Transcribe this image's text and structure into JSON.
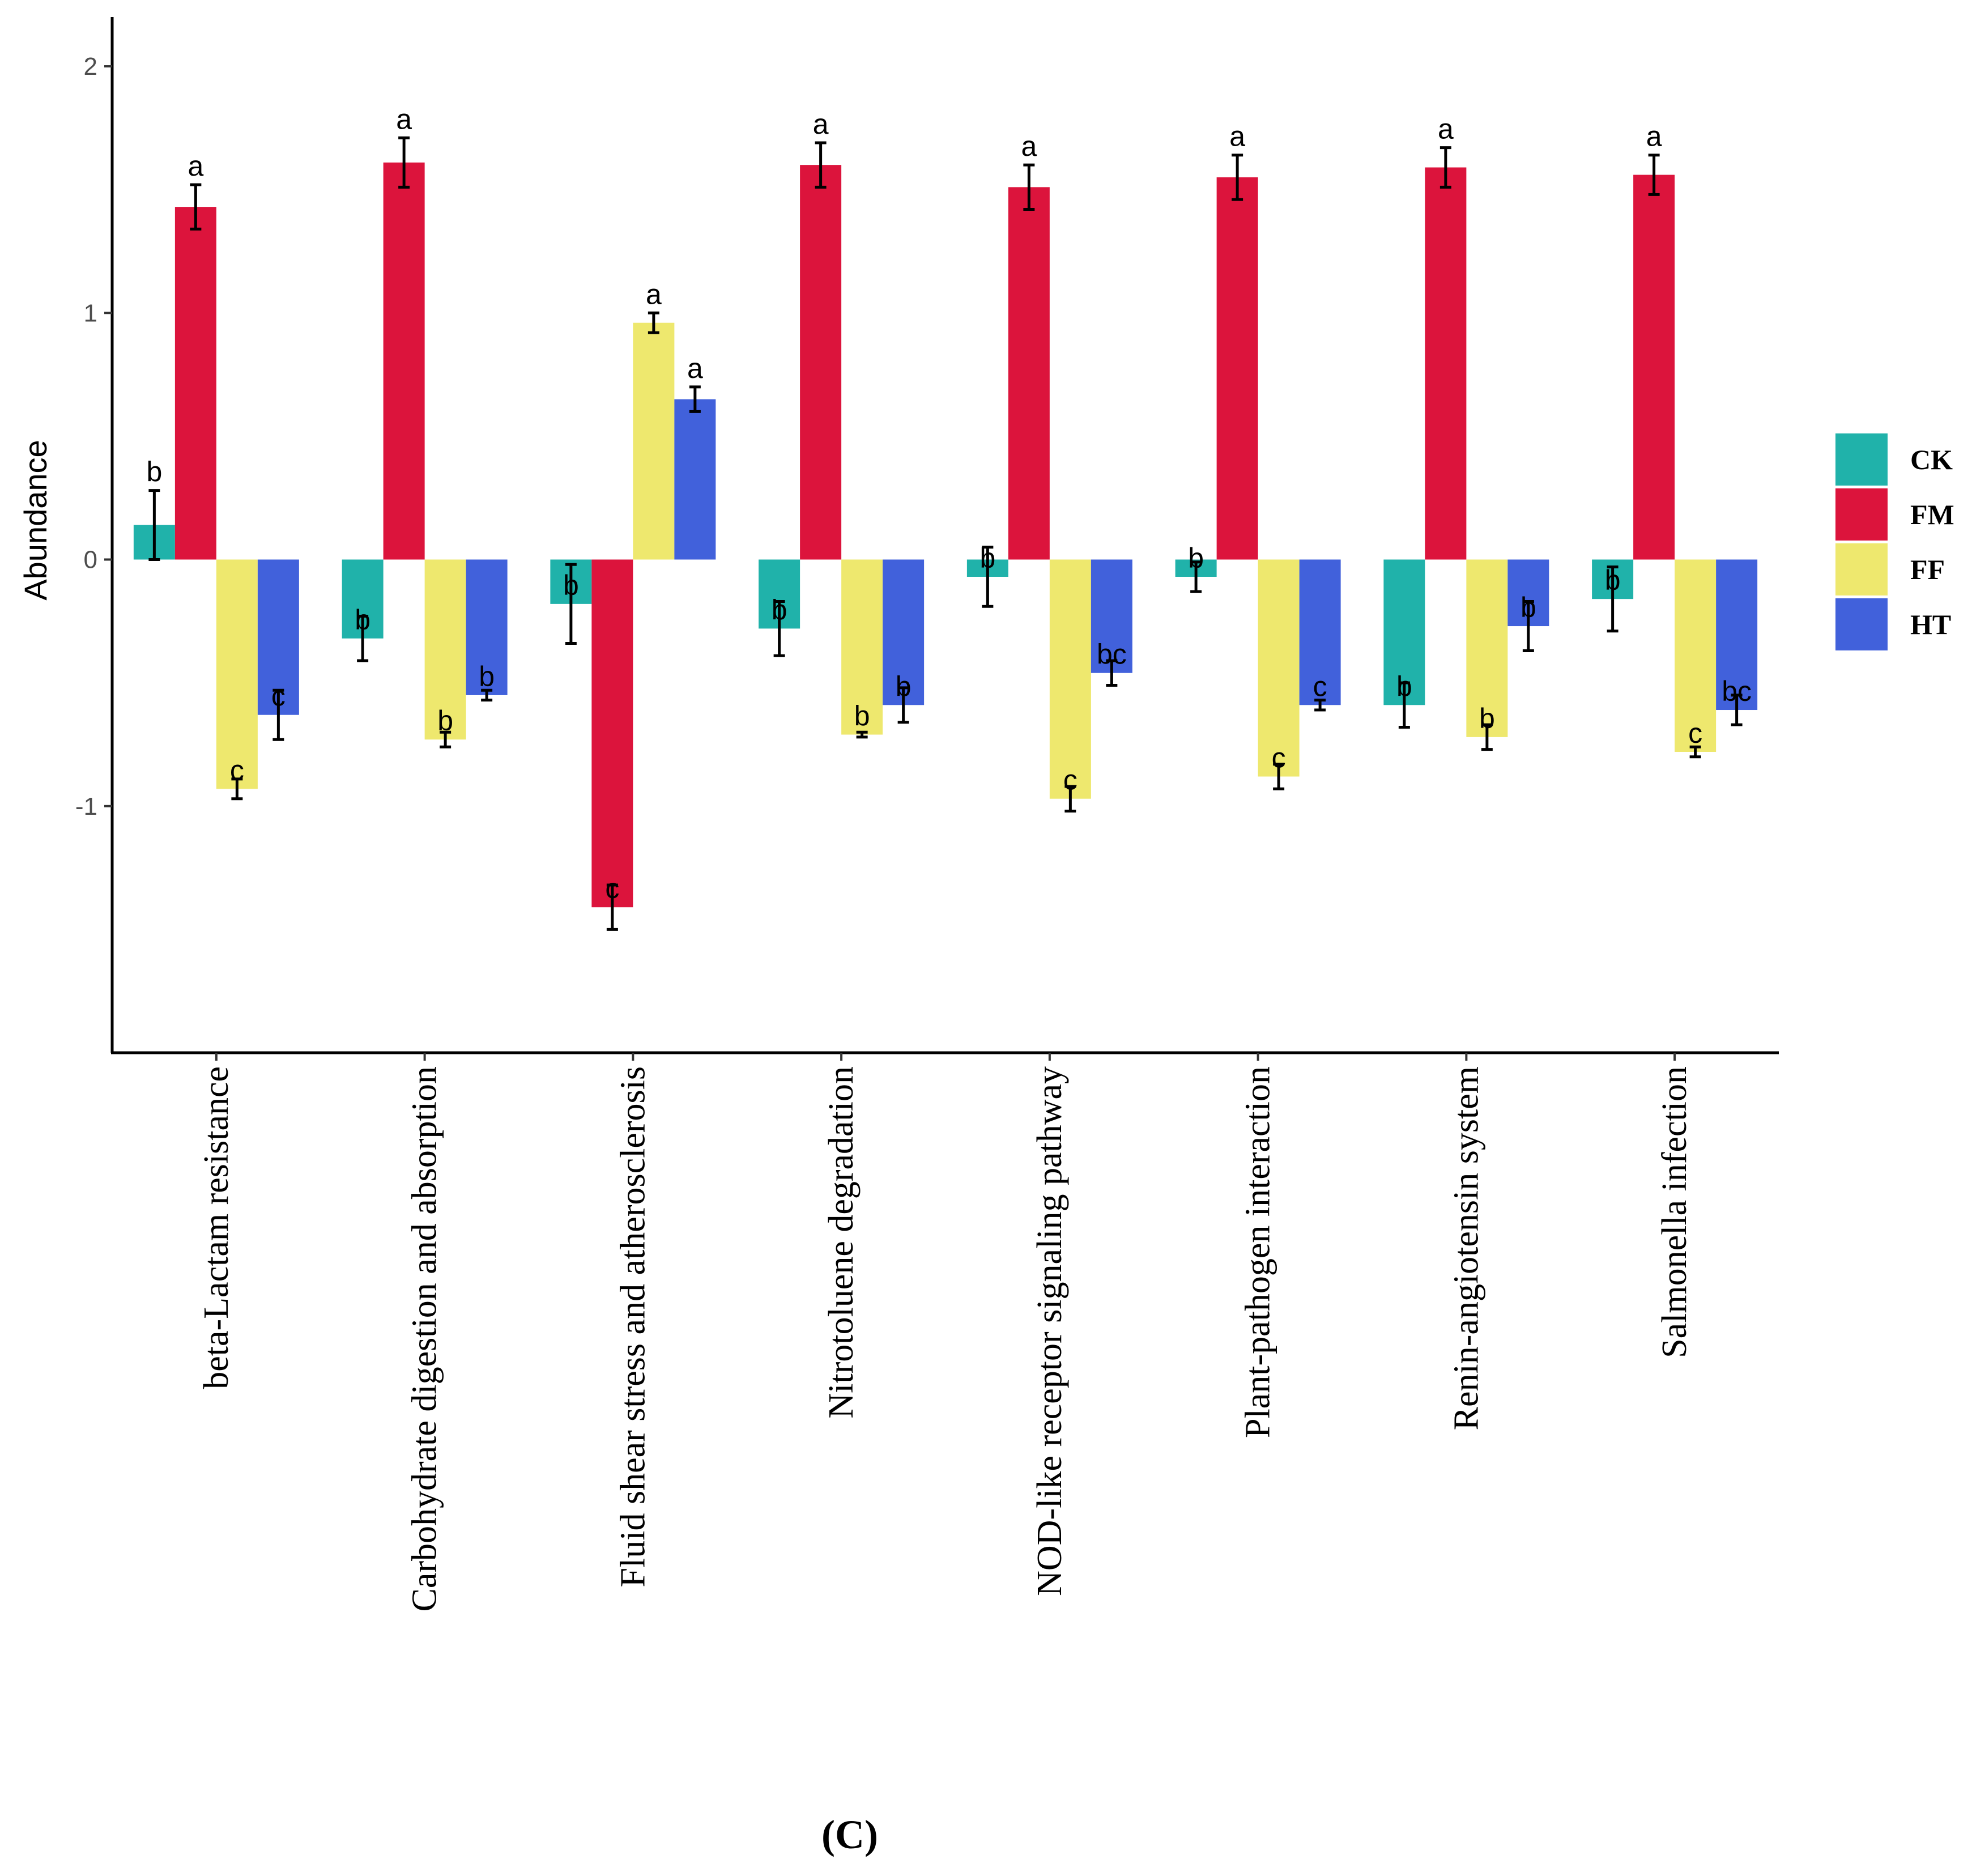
{
  "chart_data": {
    "type": "bar",
    "title": "",
    "panel_label": "(C)",
    "xlabel": "",
    "ylabel": "Abundance",
    "ylim": [
      -2.0,
      2.2
    ],
    "yticks": [
      -1,
      0,
      1,
      2
    ],
    "ytick_labels": [
      "-1",
      "0",
      "1",
      "2"
    ],
    "grid": false,
    "legend_position": "right",
    "categories": [
      "beta-Lactam resistance",
      "Carbohydrate digestion and absorption",
      "Fluid shear stress and atherosclerosis",
      "Nitrotoluene degradation",
      "NOD-like receptor signaling pathway",
      "Plant-pathogen interaction",
      "Renin-angiotensin system",
      "Salmonella infection"
    ],
    "series": [
      {
        "name": "CK",
        "color": "#20B2AA",
        "values": [
          0.14,
          -0.32,
          -0.18,
          -0.28,
          -0.07,
          -0.07,
          -0.59,
          -0.16
        ],
        "errors": [
          0.14,
          0.09,
          0.16,
          0.11,
          0.12,
          0.06,
          0.09,
          0.13
        ],
        "letters": [
          "b",
          "b",
          "b",
          "b",
          "b",
          "b",
          "b",
          "b"
        ]
      },
      {
        "name": "FM",
        "color": "#DC143C",
        "values": [
          1.43,
          1.61,
          -1.41,
          1.6,
          1.51,
          1.55,
          1.59,
          1.56
        ],
        "errors": [
          0.09,
          0.1,
          0.09,
          0.09,
          0.09,
          0.09,
          0.08,
          0.08
        ],
        "letters": [
          "a",
          "a",
          "c",
          "a",
          "a",
          "a",
          "a",
          "a"
        ]
      },
      {
        "name": "FF",
        "color": "#EEE86E",
        "values": [
          -0.93,
          -0.73,
          0.96,
          -0.71,
          -0.97,
          -0.88,
          -0.72,
          -0.78
        ],
        "errors": [
          0.04,
          0.03,
          0.04,
          0.01,
          0.05,
          0.05,
          0.05,
          0.02
        ],
        "letters": [
          "c",
          "b",
          "a",
          "b",
          "c",
          "c",
          "b",
          "c"
        ]
      },
      {
        "name": "HT",
        "color": "#4161DB",
        "values": [
          -0.63,
          -0.55,
          0.65,
          -0.59,
          -0.46,
          -0.59,
          -0.27,
          -0.61
        ],
        "errors": [
          0.1,
          0.02,
          0.05,
          0.07,
          0.05,
          0.02,
          0.1,
          0.06
        ],
        "letters": [
          "c",
          "b",
          "a",
          "b",
          "bc",
          "c",
          "b",
          "bc"
        ]
      }
    ]
  }
}
